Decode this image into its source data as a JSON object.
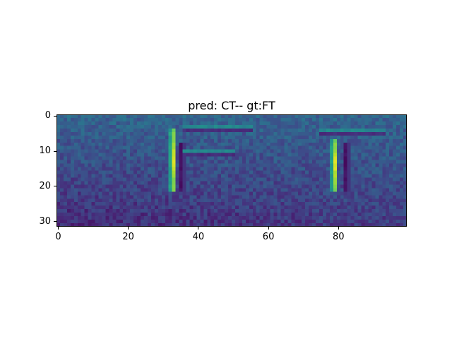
{
  "chart_data": {
    "type": "heatmap",
    "title": "pred: CT-- gt:FT",
    "xlabel": "",
    "ylabel": "",
    "xlim": [
      0,
      100
    ],
    "ylim": [
      32,
      0
    ],
    "shape": [
      32,
      100
    ],
    "xticks": [
      0,
      20,
      40,
      60,
      80
    ],
    "yticks": [
      0,
      10,
      20,
      30
    ],
    "colormap": "viridis",
    "grid": false,
    "features": [
      {
        "kind": "bright_vertical_stroke",
        "x": 33,
        "y_range": [
          4,
          21
        ]
      },
      {
        "kind": "dark_shadow_stroke",
        "x": 35,
        "y_range": [
          8,
          21
        ]
      },
      {
        "kind": "faint_horizontal_stroke",
        "y": 4,
        "x_range": [
          36,
          55
        ]
      },
      {
        "kind": "faint_horizontal_stroke",
        "y": 11,
        "x_range": [
          36,
          50
        ]
      },
      {
        "kind": "bright_vertical_stroke",
        "x": 79,
        "y_range": [
          7,
          21
        ]
      },
      {
        "kind": "dark_shadow_stroke",
        "x": 82,
        "y_range": [
          8,
          21
        ]
      },
      {
        "kind": "faint_horizontal_stroke",
        "y": 5,
        "x_range": [
          75,
          93
        ]
      }
    ],
    "background": {
      "top_level": 0.32,
      "bottom_level": 0.12
    }
  }
}
